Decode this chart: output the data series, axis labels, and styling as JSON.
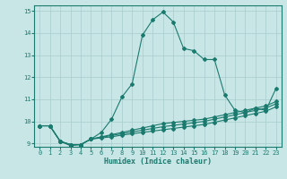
{
  "xlabel": "Humidex (Indice chaleur)",
  "bg_color": "#c8e6e6",
  "line_color": "#1a7a6e",
  "grid_color": "#a8cccc",
  "xlim": [
    -0.5,
    23.5
  ],
  "ylim": [
    8.85,
    15.25
  ],
  "yticks": [
    9,
    10,
    11,
    12,
    13,
    14,
    15
  ],
  "xticks": [
    0,
    1,
    2,
    3,
    4,
    5,
    6,
    7,
    8,
    9,
    10,
    11,
    12,
    13,
    14,
    15,
    16,
    17,
    18,
    19,
    20,
    21,
    22,
    23
  ],
  "lines": [
    {
      "x": [
        0,
        1,
        2,
        3,
        4,
        5,
        6,
        7,
        8,
        9,
        10,
        11,
        12,
        13,
        14,
        15,
        16,
        17,
        18,
        19,
        20,
        21,
        22,
        23
      ],
      "y": [
        9.8,
        9.8,
        9.1,
        8.9,
        8.95,
        9.2,
        9.5,
        10.1,
        11.1,
        11.7,
        13.9,
        14.6,
        14.95,
        14.5,
        13.3,
        13.2,
        12.8,
        12.8,
        11.2,
        10.5,
        10.4,
        10.6,
        10.5,
        11.5
      ]
    },
    {
      "x": [
        0,
        1,
        2,
        3,
        4,
        5,
        6,
        7,
        8,
        9,
        10,
        11,
        12,
        13,
        14,
        15,
        16,
        17,
        18,
        19,
        20,
        21,
        22,
        23
      ],
      "y": [
        9.8,
        9.8,
        9.1,
        8.95,
        8.95,
        9.2,
        9.3,
        9.4,
        9.5,
        9.6,
        9.7,
        9.8,
        9.9,
        9.95,
        10.0,
        10.05,
        10.1,
        10.2,
        10.3,
        10.4,
        10.5,
        10.6,
        10.7,
        10.9
      ]
    },
    {
      "x": [
        0,
        1,
        2,
        3,
        4,
        5,
        6,
        7,
        8,
        9,
        10,
        11,
        12,
        13,
        14,
        15,
        16,
        17,
        18,
        19,
        20,
        21,
        22,
        23
      ],
      "y": [
        9.8,
        9.8,
        9.1,
        8.95,
        8.95,
        9.2,
        9.28,
        9.36,
        9.44,
        9.52,
        9.6,
        9.68,
        9.76,
        9.82,
        9.88,
        9.94,
        10.0,
        10.1,
        10.2,
        10.3,
        10.4,
        10.5,
        10.6,
        10.8
      ]
    },
    {
      "x": [
        0,
        1,
        2,
        3,
        4,
        5,
        6,
        7,
        8,
        9,
        10,
        11,
        12,
        13,
        14,
        15,
        16,
        17,
        18,
        19,
        20,
        21,
        22,
        23
      ],
      "y": [
        9.8,
        9.8,
        9.1,
        8.95,
        8.95,
        9.2,
        9.25,
        9.3,
        9.38,
        9.44,
        9.5,
        9.56,
        9.62,
        9.68,
        9.74,
        9.8,
        9.86,
        9.96,
        10.06,
        10.16,
        10.26,
        10.36,
        10.46,
        10.66
      ]
    }
  ]
}
